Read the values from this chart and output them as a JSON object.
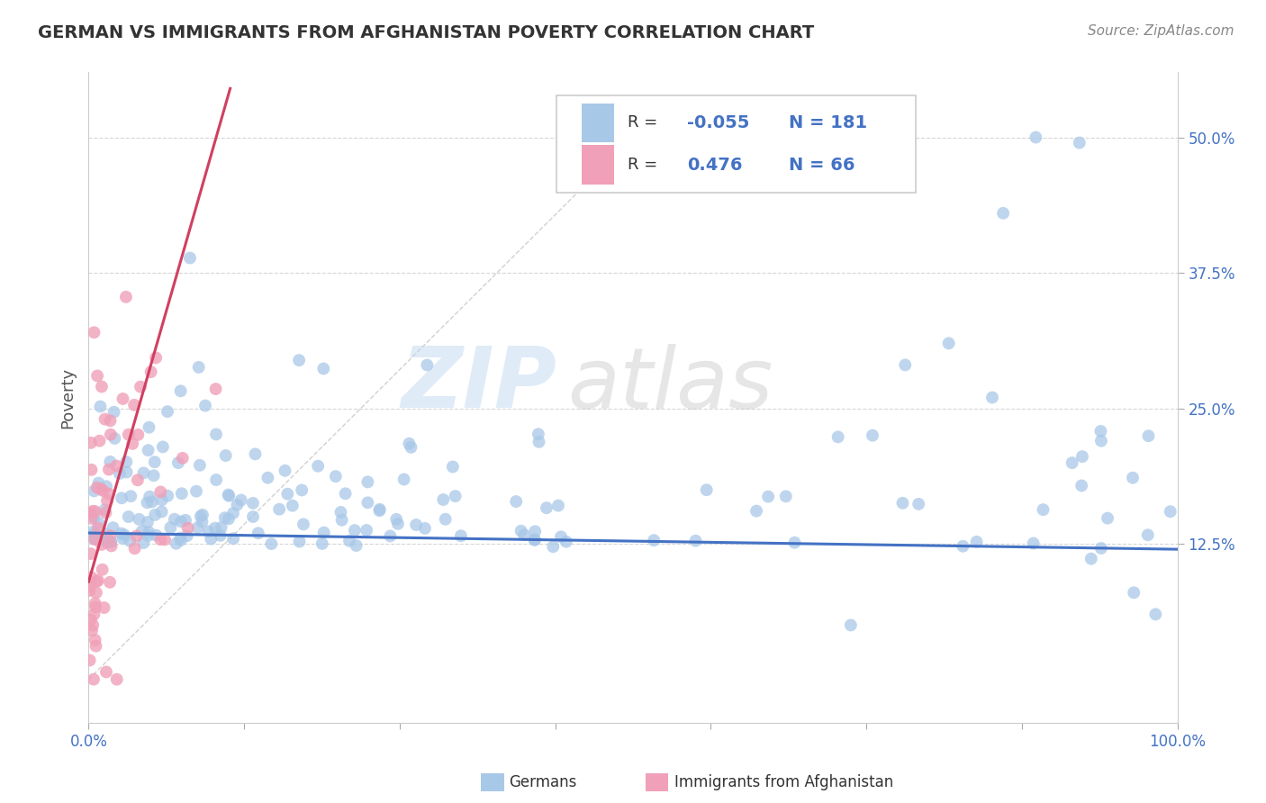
{
  "title": "GERMAN VS IMMIGRANTS FROM AFGHANISTAN POVERTY CORRELATION CHART",
  "source": "Source: ZipAtlas.com",
  "ylabel": "Poverty",
  "watermark_zip": "ZIP",
  "watermark_atlas": "atlas",
  "label_german": "Germans",
  "label_afghan": "Immigrants from Afghanistan",
  "color_german": "#a8c8e8",
  "color_afghan": "#f0a0b8",
  "color_german_line": "#4472c4",
  "color_afghan_line": "#d04060",
  "color_r_value": "#4472c4",
  "background": "#ffffff",
  "grid_color": "#cccccc",
  "title_color": "#333333",
  "source_color": "#888888",
  "axis_label_color": "#4472c4",
  "watermark_color_zip": "#c0d8f0",
  "watermark_color_atlas": "#c8c8c8"
}
